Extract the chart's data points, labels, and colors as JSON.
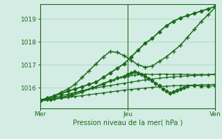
{
  "bg_color": "#d4ede4",
  "grid_color": "#a8ccbe",
  "line_color": "#1a6b1a",
  "marker_color": "#1a6b1a",
  "xlabel": "Pression niveau de la mer( hPa )",
  "xlabel_color": "#1a6b1a",
  "tick_color": "#1a6b1a",
  "xtick_labels": [
    "Mer",
    "Jeu",
    "Ven"
  ],
  "xtick_positions": [
    0.0,
    0.5,
    1.0
  ],
  "ylim": [
    1015.1,
    1019.65
  ],
  "yticks": [
    1016,
    1017,
    1018,
    1019
  ],
  "vlines": [
    0.0,
    0.5,
    1.0
  ],
  "series": [
    {
      "x": [
        0.0,
        0.04,
        0.08,
        0.12,
        0.16,
        0.2,
        0.24,
        0.28,
        0.32,
        0.36,
        0.4,
        0.44,
        0.48,
        0.52,
        0.56,
        0.6,
        0.64,
        0.68,
        0.72,
        0.76,
        0.8,
        0.84,
        0.88,
        0.92,
        0.96,
        1.0
      ],
      "y": [
        1015.45,
        1015.55,
        1015.65,
        1015.75,
        1015.85,
        1015.95,
        1016.05,
        1016.15,
        1016.25,
        1016.45,
        1016.65,
        1016.85,
        1017.05,
        1017.35,
        1017.65,
        1017.95,
        1018.15,
        1018.45,
        1018.7,
        1018.9,
        1019.05,
        1019.15,
        1019.25,
        1019.35,
        1019.45,
        1019.55
      ],
      "marker": "D",
      "ms": 2.5,
      "lw": 1.3,
      "linestyle": "-"
    },
    {
      "x": [
        0.0,
        0.04,
        0.08,
        0.12,
        0.16,
        0.2,
        0.24,
        0.28,
        0.32,
        0.36,
        0.4,
        0.44,
        0.48,
        0.52,
        0.56,
        0.6,
        0.64,
        0.68,
        0.72,
        0.76,
        0.8,
        0.84,
        0.88,
        0.92,
        0.96,
        1.0
      ],
      "y": [
        1015.45,
        1015.55,
        1015.65,
        1015.8,
        1015.95,
        1016.15,
        1016.45,
        1016.75,
        1017.05,
        1017.35,
        1017.58,
        1017.55,
        1017.4,
        1017.2,
        1017.0,
        1016.9,
        1016.95,
        1017.15,
        1017.35,
        1017.6,
        1017.85,
        1018.2,
        1018.55,
        1018.9,
        1019.2,
        1019.52
      ],
      "marker": "+",
      "ms": 4,
      "lw": 1.1,
      "linestyle": "-"
    },
    {
      "x": [
        0.0,
        0.04,
        0.08,
        0.12,
        0.16,
        0.2,
        0.24,
        0.28,
        0.32,
        0.36,
        0.4,
        0.44,
        0.48,
        0.52,
        0.56,
        0.6,
        0.64,
        0.68,
        0.72,
        0.76,
        0.8,
        0.84,
        0.88,
        0.92,
        0.96,
        1.0
      ],
      "y": [
        1015.42,
        1015.5,
        1015.58,
        1015.65,
        1015.72,
        1015.8,
        1015.88,
        1015.95,
        1016.0,
        1016.05,
        1016.1,
        1016.15,
        1016.2,
        1016.25,
        1016.3,
        1016.35,
        1016.38,
        1016.42,
        1016.45,
        1016.48,
        1016.5,
        1016.52,
        1016.54,
        1016.55,
        1016.56,
        1016.58
      ],
      "marker": "+",
      "ms": 3,
      "lw": 0.9,
      "linestyle": "-"
    },
    {
      "x": [
        0.0,
        0.04,
        0.08,
        0.12,
        0.16,
        0.2,
        0.24,
        0.28,
        0.32,
        0.36,
        0.4,
        0.44,
        0.48,
        0.52,
        0.56,
        0.6,
        0.64,
        0.68,
        0.72,
        0.76,
        0.8,
        0.84,
        0.88,
        0.92,
        0.96,
        1.0
      ],
      "y": [
        1015.42,
        1015.46,
        1015.5,
        1015.54,
        1015.58,
        1015.62,
        1015.66,
        1015.7,
        1015.74,
        1015.78,
        1015.82,
        1015.86,
        1015.9,
        1015.93,
        1015.96,
        1015.99,
        1016.02,
        1016.05,
        1016.07,
        1016.09,
        1016.1,
        1016.11,
        1016.12,
        1016.13,
        1016.14,
        1016.15
      ],
      "marker": "+",
      "ms": 2.5,
      "lw": 0.9,
      "linestyle": "-"
    },
    {
      "x": [
        0.0,
        0.06,
        0.12,
        0.18,
        0.24,
        0.3,
        0.36,
        0.4,
        0.44,
        0.48,
        0.5,
        0.52,
        0.54,
        0.56,
        0.58,
        0.6,
        0.62,
        0.64,
        0.66,
        0.68,
        0.7,
        0.72,
        0.74,
        0.76,
        0.78,
        0.8,
        0.82,
        0.84,
        0.88,
        0.92,
        0.96,
        1.0
      ],
      "y": [
        1015.42,
        1015.5,
        1015.58,
        1015.7,
        1015.85,
        1016.0,
        1016.15,
        1016.3,
        1016.42,
        1016.5,
        1016.6,
        1016.65,
        1016.7,
        1016.65,
        1016.6,
        1016.5,
        1016.4,
        1016.3,
        1016.2,
        1016.1,
        1015.95,
        1015.85,
        1015.78,
        1015.82,
        1015.88,
        1015.95,
        1016.02,
        1016.08,
        1016.1,
        1016.08,
        1016.06,
        1016.1
      ],
      "marker": "D",
      "ms": 2.5,
      "lw": 0.9,
      "linestyle": "-"
    },
    {
      "x": [
        0.0,
        0.06,
        0.12,
        0.18,
        0.24,
        0.3,
        0.36,
        0.42,
        0.46,
        0.5,
        0.54,
        0.58,
        0.6,
        0.64,
        0.68,
        0.72,
        0.76,
        0.8,
        0.84,
        0.88,
        0.92,
        0.96,
        1.0
      ],
      "y": [
        1015.42,
        1015.5,
        1015.58,
        1015.65,
        1015.8,
        1016.0,
        1016.2,
        1016.35,
        1016.45,
        1016.5,
        1016.55,
        1016.58,
        1016.6,
        1016.58,
        1016.6,
        1016.6,
        1016.58,
        1016.6,
        1016.58,
        1016.58,
        1016.58,
        1016.58,
        1016.6
      ],
      "marker": "+",
      "ms": 3,
      "lw": 0.9,
      "linestyle": "-"
    }
  ]
}
